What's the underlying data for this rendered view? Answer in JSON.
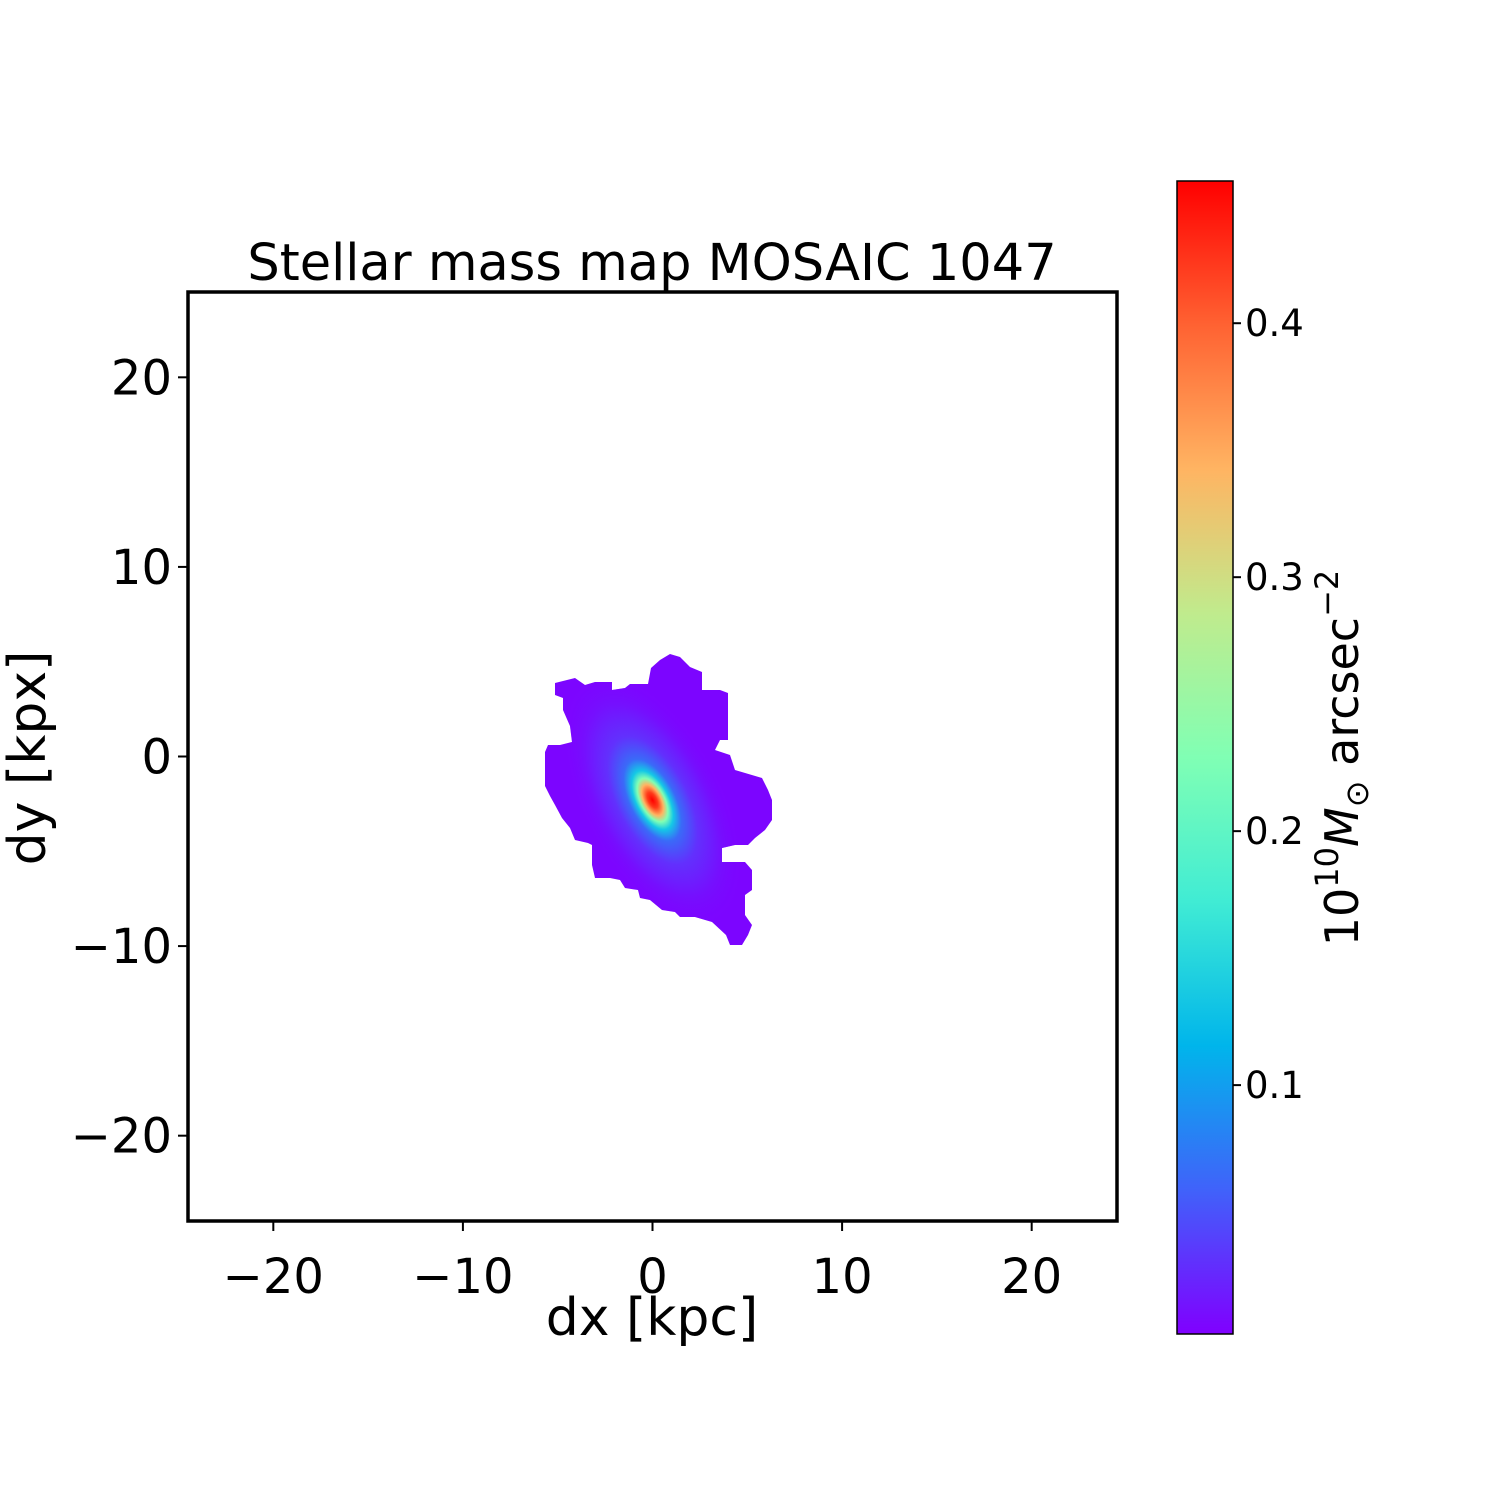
{
  "chart_data": {
    "type": "heatmap",
    "title": "Stellar mass map MOSAIC 1047",
    "xlabel": "dx [kpc]",
    "ylabel": "dy [kpx]",
    "xlim": [
      -24.5,
      24.5
    ],
    "ylim": [
      -24.5,
      24.5
    ],
    "xticks": [
      -20,
      -10,
      0,
      10,
      20
    ],
    "yticks": [
      -20,
      -10,
      0,
      10,
      20
    ],
    "xtick_labels": [
      "−20",
      "−10",
      "0",
      "10",
      "20"
    ],
    "ytick_labels": [
      "−20",
      "−10",
      "0",
      "10",
      "20"
    ],
    "grid": false,
    "colormap": "rainbow",
    "colorbar": {
      "label_base": "10",
      "label_exp": "10",
      "label_symbol": "M",
      "label_sub": "⊙",
      "label_unit": " arcsec",
      "label_unit_exp": "−2",
      "range": [
        0.002,
        0.456
      ],
      "ticks": [
        0.1,
        0.2,
        0.3,
        0.4
      ],
      "tick_labels": [
        "0.1",
        "0.2",
        "0.3",
        "0.4"
      ]
    },
    "source": {
      "peak_value": 0.456,
      "peak_position": [
        0.0,
        -2.3
      ],
      "extent_x": [
        -5.5,
        6.2
      ],
      "extent_y": [
        -9.7,
        5.4
      ],
      "background_value": 0.01
    },
    "colors": {
      "min": "#8000ff",
      "max": "#ff0000"
    }
  }
}
